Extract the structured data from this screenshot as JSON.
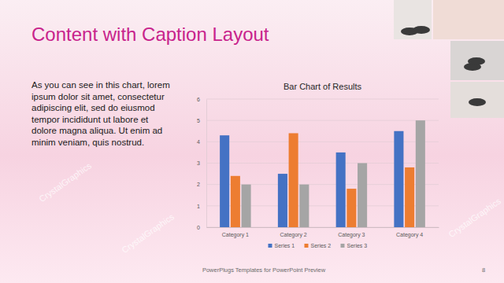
{
  "slide": {
    "title": "Content with Caption Layout",
    "caption": [
      "As you can see in this chart, lorem",
      "ipsum dolor sit amet, consectetur",
      "adipiscing elit, sed do eiusmod",
      "tempor incididunt ut labore et",
      "dolore magna aliqua. Ut enim ad",
      "minim veniam, quis nostrud."
    ],
    "footer": "PowerPlugs Templates for PowerPoint Preview",
    "page_number": 8,
    "watermark": "CrystalGraphics"
  },
  "chart_data": {
    "type": "bar",
    "title": "Bar Chart of Results",
    "categories": [
      "Category 1",
      "Category 2",
      "Category 3",
      "Category 4"
    ],
    "series": [
      {
        "name": "Series 1",
        "color": "#4472c4",
        "values": [
          4.3,
          2.5,
          3.5,
          4.5
        ]
      },
      {
        "name": "Series 2",
        "color": "#ed7d31",
        "values": [
          2.4,
          4.4,
          1.8,
          2.8
        ]
      },
      {
        "name": "Series 3",
        "color": "#a5a5a5",
        "values": [
          2,
          2,
          3,
          5
        ]
      }
    ],
    "ylim": [
      0,
      6
    ],
    "yticks": [
      0,
      1,
      2,
      3,
      4,
      5,
      6
    ],
    "grid": true,
    "legend": "bottom"
  }
}
